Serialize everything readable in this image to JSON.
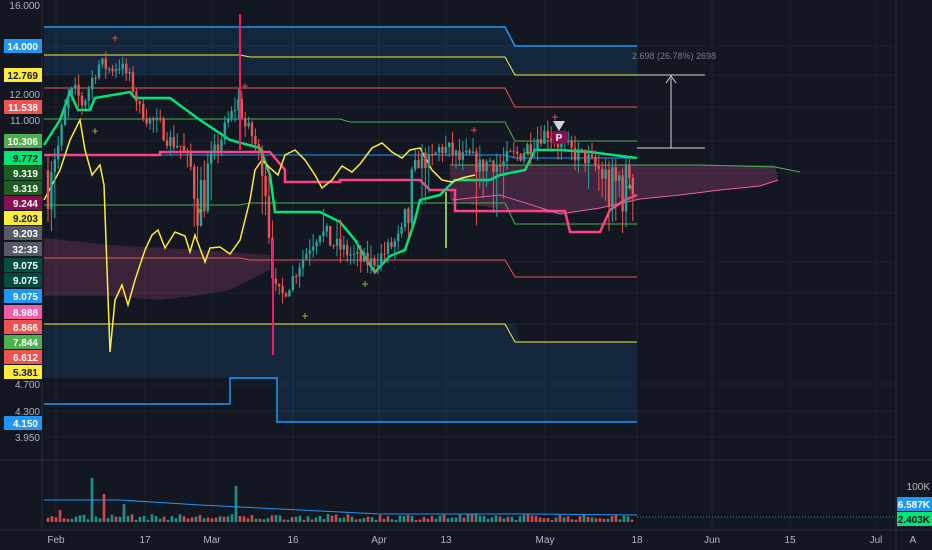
{
  "chart_data": {
    "type": "candlestick",
    "title": "",
    "x_axis_labels": [
      "Feb",
      "17",
      "Mar",
      "16",
      "Apr",
      "13",
      "May",
      "18",
      "Jun",
      "15",
      "Jul"
    ],
    "y_axis_ticks": [
      "16.000",
      "12.000",
      "11.000",
      "4.700",
      "4.300",
      "3.950"
    ],
    "volume_axis_ticks": [
      "100K"
    ],
    "price_badges": [
      {
        "text": "14.000",
        "bg": "#2196f3",
        "fg": "#ffffff"
      },
      {
        "text": "12.769",
        "bg": "#ffeb3b",
        "fg": "#131722"
      },
      {
        "text": "11.538",
        "bg": "#ef5350",
        "fg": "#ffffff"
      },
      {
        "text": "10.306",
        "bg": "#4caf50",
        "fg": "#ffffff"
      },
      {
        "text": "9.772",
        "bg": "#00e676",
        "fg": "#131722"
      },
      {
        "text": "9.319",
        "bg": "#1b5e20",
        "fg": "#ffffff"
      },
      {
        "text": "9.319",
        "bg": "#1b5e20",
        "fg": "#ffffff"
      },
      {
        "text": "9.244",
        "bg": "#880e4f",
        "fg": "#ffffff"
      },
      {
        "text": "9.203",
        "bg": "#ffeb3b",
        "fg": "#131722"
      },
      {
        "text": "9.203",
        "bg": "#555b66",
        "fg": "#ffffff"
      },
      {
        "text": "32:33",
        "bg": "#555b66",
        "fg": "#ffffff"
      },
      {
        "text": "9.075",
        "bg": "#004d40",
        "fg": "#ffffff"
      },
      {
        "text": "9.075",
        "bg": "#004d40",
        "fg": "#ffffff"
      },
      {
        "text": "9.075",
        "bg": "#2196f3",
        "fg": "#ffffff"
      },
      {
        "text": "8.988",
        "bg": "#ef5da8",
        "fg": "#ffffff"
      },
      {
        "text": "8.866",
        "bg": "#ef5350",
        "fg": "#ffffff"
      },
      {
        "text": "7.844",
        "bg": "#4caf50",
        "fg": "#ffffff"
      },
      {
        "text": "6.612",
        "bg": "#ef5350",
        "fg": "#ffffff"
      },
      {
        "text": "5.381",
        "bg": "#ffeb3b",
        "fg": "#131722"
      },
      {
        "text": "4.150",
        "bg": "#2196f3",
        "fg": "#ffffff"
      }
    ],
    "volume_badges": [
      {
        "text": "6.587K",
        "bg": "#2196f3",
        "fg": "#ffffff"
      },
      {
        "text": "2.403K",
        "bg": "#00e676",
        "fg": "#131722"
      }
    ],
    "measure_annotation": "2.698 (26.78%) 2698",
    "event_marker": "P",
    "corner_labels": {
      "left": "",
      "right": "A"
    },
    "colors": {
      "bg": "#131722",
      "up": "#26a69a",
      "down": "#ef5350",
      "fib_blue": "#2196f3",
      "fib_yellow": "#ffeb3b",
      "fib_red": "#ef5350",
      "fib_green": "#4caf50",
      "tenkan": "#00e676",
      "kijun": "#ff4081",
      "chikou": "#ffeb3b"
    }
  }
}
